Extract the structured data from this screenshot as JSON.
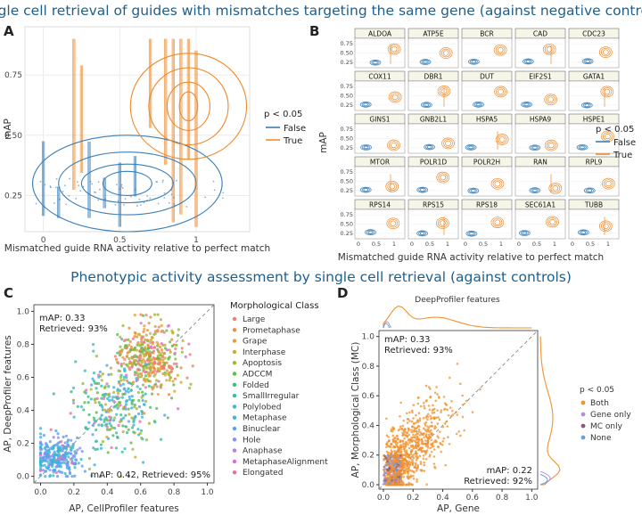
{
  "titles": {
    "top": "Single cell retrieval of guides with mismatches targeting the same gene (against negative controls)",
    "middle": "Phenotypic activity assessment by single cell retrieval (against controls)"
  },
  "panel_letters": [
    "A",
    "B",
    "C",
    "D"
  ],
  "colors": {
    "false_blue": "#3a7fb8",
    "true_orange": "#f08a2c",
    "grid": "#ebebeb",
    "panel_bg": "#ffffff"
  },
  "chart_data": [
    {
      "id": "A",
      "type": "scatter",
      "xlabel": "Mismatched guide RNA activity relative to perfect match",
      "ylabel": "mAP",
      "xticks": [
        "0",
        "0.5",
        "1"
      ],
      "xtick_values": [
        0,
        0.5,
        1
      ],
      "yticks": [
        "0.25",
        "0.50",
        "0.75"
      ],
      "ytick_values": [
        0.25,
        0.5,
        0.75
      ],
      "xlim": [
        -0.12,
        1.35
      ],
      "ylim": [
        0.1,
        0.95
      ],
      "legend": {
        "title": "p < 0.05",
        "entries": [
          "False",
          "True"
        ],
        "position": "right"
      },
      "contours": [
        {
          "name": "False",
          "color": "#3a7fb8",
          "center": [
            0.55,
            0.3
          ],
          "levels": [
            [
              0.62,
              0.2
            ],
            [
              0.45,
              0.13
            ],
            [
              0.3,
              0.08
            ],
            [
              0.16,
              0.05
            ]
          ]
        },
        {
          "name": "True",
          "color": "#f08a2c",
          "center": [
            0.95,
            0.62
          ],
          "levels": [
            [
              0.38,
              0.22
            ],
            [
              0.26,
              0.16
            ],
            [
              0.14,
              0.1
            ],
            [
              0.06,
              0.06
            ]
          ]
        }
      ],
      "stripes_x": [
        0,
        0.1,
        0.2,
        0.25,
        0.3,
        0.4,
        0.5,
        0.6,
        0.7,
        0.8,
        0.85,
        0.9,
        0.95,
        1.0
      ]
    },
    {
      "id": "B",
      "type": "scatter",
      "xlabel": "Mismatched guide RNA activity relative to perfect match",
      "ylabel": "mAP",
      "xticks": [
        "0",
        "0.5",
        "1"
      ],
      "xtick_values": [
        0,
        0.5,
        1
      ],
      "yticks": [
        "0.25",
        "0.50",
        "0.75"
      ],
      "ytick_values": [
        0.25,
        0.5,
        0.75
      ],
      "legend": {
        "title": "p < 0.05",
        "entries": [
          "False",
          "True"
        ],
        "position": "right"
      },
      "facets": [
        "ALDOA",
        "ATP5E",
        "BCR",
        "CAD",
        "CDC23",
        "COX11",
        "DBR1",
        "DUT",
        "EIF2S1",
        "GATA1",
        "GINS1",
        "GNB2L1",
        "HSPA5",
        "HSPA9",
        "HSPE1",
        "MTOR",
        "POLR1D",
        "POLR2H",
        "RAN",
        "RPL9",
        "RPS14",
        "RPS15",
        "RPS18",
        "SEC61A1",
        "TUBB"
      ]
    },
    {
      "id": "C",
      "type": "scatter",
      "xlabel": "AP, CellProfiler features",
      "ylabel": "AP, DeepProfiler features",
      "xticks": [
        "0.0",
        "0.2",
        "0.4",
        "0.6",
        "0.8",
        "1.0"
      ],
      "xtick_values": [
        0,
        0.2,
        0.4,
        0.6,
        0.8,
        1.0
      ],
      "yticks": [
        "0.0",
        "0.2",
        "0.4",
        "0.6",
        "0.8",
        "1.0"
      ],
      "ytick_values": [
        0,
        0.2,
        0.4,
        0.6,
        0.8,
        1.0
      ],
      "xlim": [
        -0.04,
        1.04
      ],
      "ylim": [
        -0.04,
        1.04
      ],
      "annotations": {
        "top_left": [
          "mAP: 0.33",
          "Retrieved: 93%"
        ],
        "bottom_right": "mAP: 0.42, Retrieved: 95%"
      },
      "legend": {
        "title": "Morphological Class",
        "entries": [
          {
            "label": "Large",
            "color": "#f07f76"
          },
          {
            "label": "Prometaphase",
            "color": "#f08a3c"
          },
          {
            "label": "Grape",
            "color": "#e2a23b"
          },
          {
            "label": "Interphase",
            "color": "#c4ae32"
          },
          {
            "label": "Apoptosis",
            "color": "#9bb83a"
          },
          {
            "label": "ADCCM",
            "color": "#5cbd4a"
          },
          {
            "label": "Folded",
            "color": "#3dbe78"
          },
          {
            "label": "SmallIrregular",
            "color": "#36bfa6"
          },
          {
            "label": "Polylobed",
            "color": "#35bdc8"
          },
          {
            "label": "Metaphase",
            "color": "#3bb3e2"
          },
          {
            "label": "Binuclear",
            "color": "#58a0ee"
          },
          {
            "label": "Hole",
            "color": "#8a8ef0"
          },
          {
            "label": "Anaphase",
            "color": "#b67cea"
          },
          {
            "label": "MetaphaseAlignment",
            "color": "#d871d4"
          },
          {
            "label": "Elongated",
            "color": "#ec6ea8"
          }
        ]
      }
    },
    {
      "id": "D",
      "type": "scatter",
      "title": "DeepProfiler features",
      "xlabel": "AP, Gene",
      "ylabel": "AP, Morphological Class (MC)",
      "xticks": [
        "0.0",
        "0.2",
        "0.4",
        "0.6",
        "0.8",
        "1.0"
      ],
      "xtick_values": [
        0,
        0.2,
        0.4,
        0.6,
        0.8,
        1.0
      ],
      "yticks": [
        "0.0",
        "0.2",
        "0.4",
        "0.6",
        "0.8",
        "1.0"
      ],
      "ytick_values": [
        0,
        0.2,
        0.4,
        0.6,
        0.8,
        1.0
      ],
      "xlim": [
        -0.03,
        1.04
      ],
      "ylim": [
        -0.03,
        1.04
      ],
      "annotations": {
        "top_left": [
          "mAP: 0.33",
          "Retrieved: 93%"
        ],
        "bottom_right": [
          "mAP: 0.22",
          "Retrieved: 92%"
        ]
      },
      "legend": {
        "title": "p < 0.05",
        "entries": [
          {
            "label": "Both",
            "color": "#f0922e"
          },
          {
            "label": "Gene only",
            "color": "#b48fd6"
          },
          {
            "label": "MC only",
            "color": "#8a5a7a"
          },
          {
            "label": "None",
            "color": "#6a9fd8"
          }
        ]
      }
    }
  ]
}
